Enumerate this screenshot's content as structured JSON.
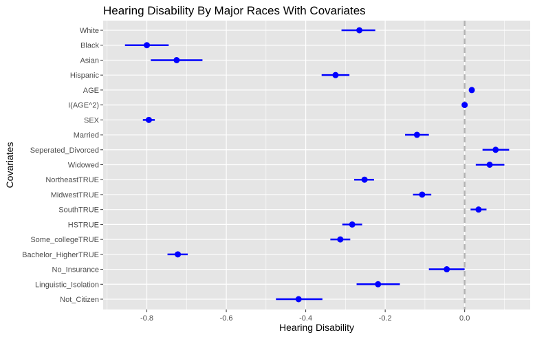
{
  "chart_data": {
    "type": "dot-whisker",
    "title": "Hearing Disability By Major Races With Covariates",
    "xlabel": "Hearing Disability",
    "ylabel": "Covariates",
    "xlim": [
      -0.91,
      0.165
    ],
    "xticks": [
      -0.8,
      -0.6,
      -0.4,
      -0.2,
      0.0
    ],
    "xtick_labels": [
      "-0.8",
      "-0.6",
      "-0.4",
      "-0.2",
      "0.0"
    ],
    "reference_line_x": 0,
    "grid": true,
    "colors": {
      "panel_bg": "#e5e5e5",
      "grid": "#ffffff",
      "point": "#0000ff",
      "reference_line": "#b3b3b3"
    },
    "rows": [
      {
        "label": "White",
        "estimate": -0.265,
        "low": -0.31,
        "high": -0.225
      },
      {
        "label": "Black",
        "estimate": -0.8,
        "low": -0.855,
        "high": -0.745
      },
      {
        "label": "Asian",
        "estimate": -0.725,
        "low": -0.79,
        "high": -0.66
      },
      {
        "label": "Hispanic",
        "estimate": -0.325,
        "low": -0.36,
        "high": -0.29
      },
      {
        "label": "AGE",
        "estimate": 0.018,
        "low": 0.018,
        "high": 0.018
      },
      {
        "label": "I(AGE^2)",
        "estimate": 0.0,
        "low": 0.0,
        "high": 0.0
      },
      {
        "label": "SEX",
        "estimate": -0.795,
        "low": -0.81,
        "high": -0.78
      },
      {
        "label": "Married",
        "estimate": -0.12,
        "low": -0.15,
        "high": -0.09
      },
      {
        "label": "Seperated_Divorced",
        "estimate": 0.078,
        "low": 0.045,
        "high": 0.112
      },
      {
        "label": "Widowed",
        "estimate": 0.063,
        "low": 0.028,
        "high": 0.1
      },
      {
        "label": "NortheastTRUE",
        "estimate": -0.252,
        "low": -0.278,
        "high": -0.228
      },
      {
        "label": "MidwestTRUE",
        "estimate": -0.107,
        "low": -0.13,
        "high": -0.084
      },
      {
        "label": "SouthTRUE",
        "estimate": 0.035,
        "low": 0.015,
        "high": 0.055
      },
      {
        "label": "HSTRUE",
        "estimate": -0.283,
        "low": -0.308,
        "high": -0.258
      },
      {
        "label": "Some_collegeTRUE",
        "estimate": -0.313,
        "low": -0.338,
        "high": -0.288
      },
      {
        "label": "Bachelor_HigherTRUE",
        "estimate": -0.722,
        "low": -0.748,
        "high": -0.697
      },
      {
        "label": "No_Insurance",
        "estimate": -0.045,
        "low": -0.09,
        "high": 0.0
      },
      {
        "label": "Linguistic_Isolation",
        "estimate": -0.218,
        "low": -0.272,
        "high": -0.163
      },
      {
        "label": "Not_Citizen",
        "estimate": -0.418,
        "low": -0.475,
        "high": -0.358
      }
    ]
  }
}
